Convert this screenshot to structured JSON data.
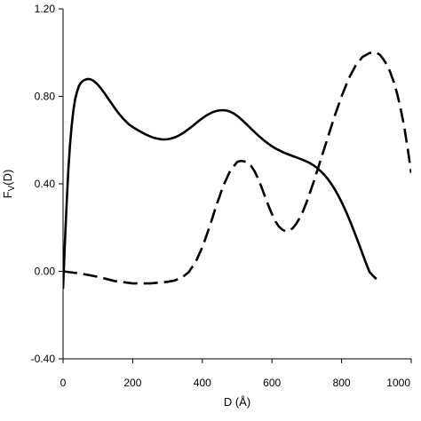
{
  "chart_data": {
    "type": "line",
    "title": "",
    "xlabel": "D (Å)",
    "ylabel_main": "F",
    "ylabel_sub": "V",
    "ylabel_tail": "(D)",
    "xlim": [
      0,
      1000
    ],
    "ylim": [
      -0.4,
      1.2
    ],
    "x_ticks": [
      0,
      200,
      400,
      600,
      800,
      1000
    ],
    "x_tick_labels": [
      "0",
      "200",
      "400",
      "600",
      "800",
      "1000"
    ],
    "y_ticks": [
      -0.4,
      0.0,
      0.4,
      0.8,
      1.2
    ],
    "y_tick_labels": [
      "-0.40",
      "0.00",
      "0.40",
      "0.80",
      "1.20"
    ],
    "grid": false,
    "series": [
      {
        "style": "solid",
        "x": [
          0,
          5,
          10,
          15,
          20,
          25,
          30,
          35,
          40,
          45,
          50,
          55,
          60,
          65,
          70,
          75,
          80,
          85,
          90,
          95,
          100,
          110,
          120,
          130,
          140,
          150,
          160,
          170,
          180,
          190,
          200,
          210,
          220,
          230,
          240,
          250,
          260,
          270,
          280,
          290,
          300,
          310,
          320,
          330,
          340,
          350,
          360,
          370,
          380,
          390,
          400,
          410,
          420,
          430,
          440,
          450,
          460,
          470,
          480,
          490,
          500,
          510,
          520,
          530,
          540,
          550,
          560,
          570,
          580,
          590,
          600,
          610,
          620,
          630,
          640,
          650,
          660,
          670,
          680,
          690,
          700,
          710,
          720,
          730,
          740,
          750,
          760,
          770,
          780,
          790,
          800,
          810,
          820,
          830,
          840,
          850,
          860,
          870,
          880,
          890,
          900
        ],
        "y": [
          -0.08,
          0.12,
          0.3,
          0.46,
          0.58,
          0.67,
          0.74,
          0.79,
          0.82,
          0.845,
          0.86,
          0.868,
          0.874,
          0.877,
          0.879,
          0.879,
          0.877,
          0.873,
          0.868,
          0.861,
          0.853,
          0.834,
          0.812,
          0.789,
          0.766,
          0.743,
          0.722,
          0.703,
          0.686,
          0.671,
          0.66,
          0.65,
          0.641,
          0.632,
          0.624,
          0.617,
          0.611,
          0.607,
          0.604,
          0.603,
          0.604,
          0.607,
          0.612,
          0.619,
          0.628,
          0.638,
          0.65,
          0.662,
          0.675,
          0.688,
          0.7,
          0.711,
          0.72,
          0.728,
          0.733,
          0.736,
          0.737,
          0.735,
          0.73,
          0.722,
          0.711,
          0.698,
          0.683,
          0.668,
          0.652,
          0.637,
          0.622,
          0.608,
          0.595,
          0.583,
          0.572,
          0.562,
          0.554,
          0.546,
          0.539,
          0.533,
          0.527,
          0.521,
          0.515,
          0.509,
          0.502,
          0.494,
          0.484,
          0.472,
          0.458,
          0.442,
          0.423,
          0.401,
          0.376,
          0.348,
          0.317,
          0.283,
          0.246,
          0.207,
          0.166,
          0.124,
          0.081,
          0.038,
          -0.002,
          -0.02,
          -0.035
        ]
      },
      {
        "style": "dashed",
        "x": [
          0,
          50,
          100,
          150,
          200,
          250,
          300,
          320,
          340,
          360,
          380,
          400,
          420,
          440,
          460,
          480,
          500,
          510,
          520,
          530,
          540,
          550,
          560,
          570,
          580,
          590,
          600,
          610,
          620,
          630,
          640,
          650,
          660,
          670,
          680,
          690,
          700,
          720,
          740,
          760,
          780,
          800,
          820,
          840,
          860,
          880,
          890,
          900,
          910,
          920,
          930,
          940,
          950,
          960,
          970,
          980,
          990,
          1000
        ],
        "y": [
          0.0,
          -0.01,
          -0.025,
          -0.045,
          -0.055,
          -0.055,
          -0.048,
          -0.042,
          -0.03,
          -0.005,
          0.04,
          0.11,
          0.2,
          0.3,
          0.39,
          0.46,
          0.5,
          0.505,
          0.503,
          0.497,
          0.482,
          0.458,
          0.425,
          0.385,
          0.342,
          0.3,
          0.262,
          0.228,
          0.205,
          0.19,
          0.183,
          0.186,
          0.198,
          0.218,
          0.245,
          0.278,
          0.318,
          0.41,
          0.51,
          0.61,
          0.71,
          0.8,
          0.88,
          0.94,
          0.98,
          0.998,
          1.002,
          1.0,
          0.99,
          0.97,
          0.945,
          0.91,
          0.865,
          0.81,
          0.74,
          0.66,
          0.56,
          0.45
        ]
      }
    ]
  }
}
